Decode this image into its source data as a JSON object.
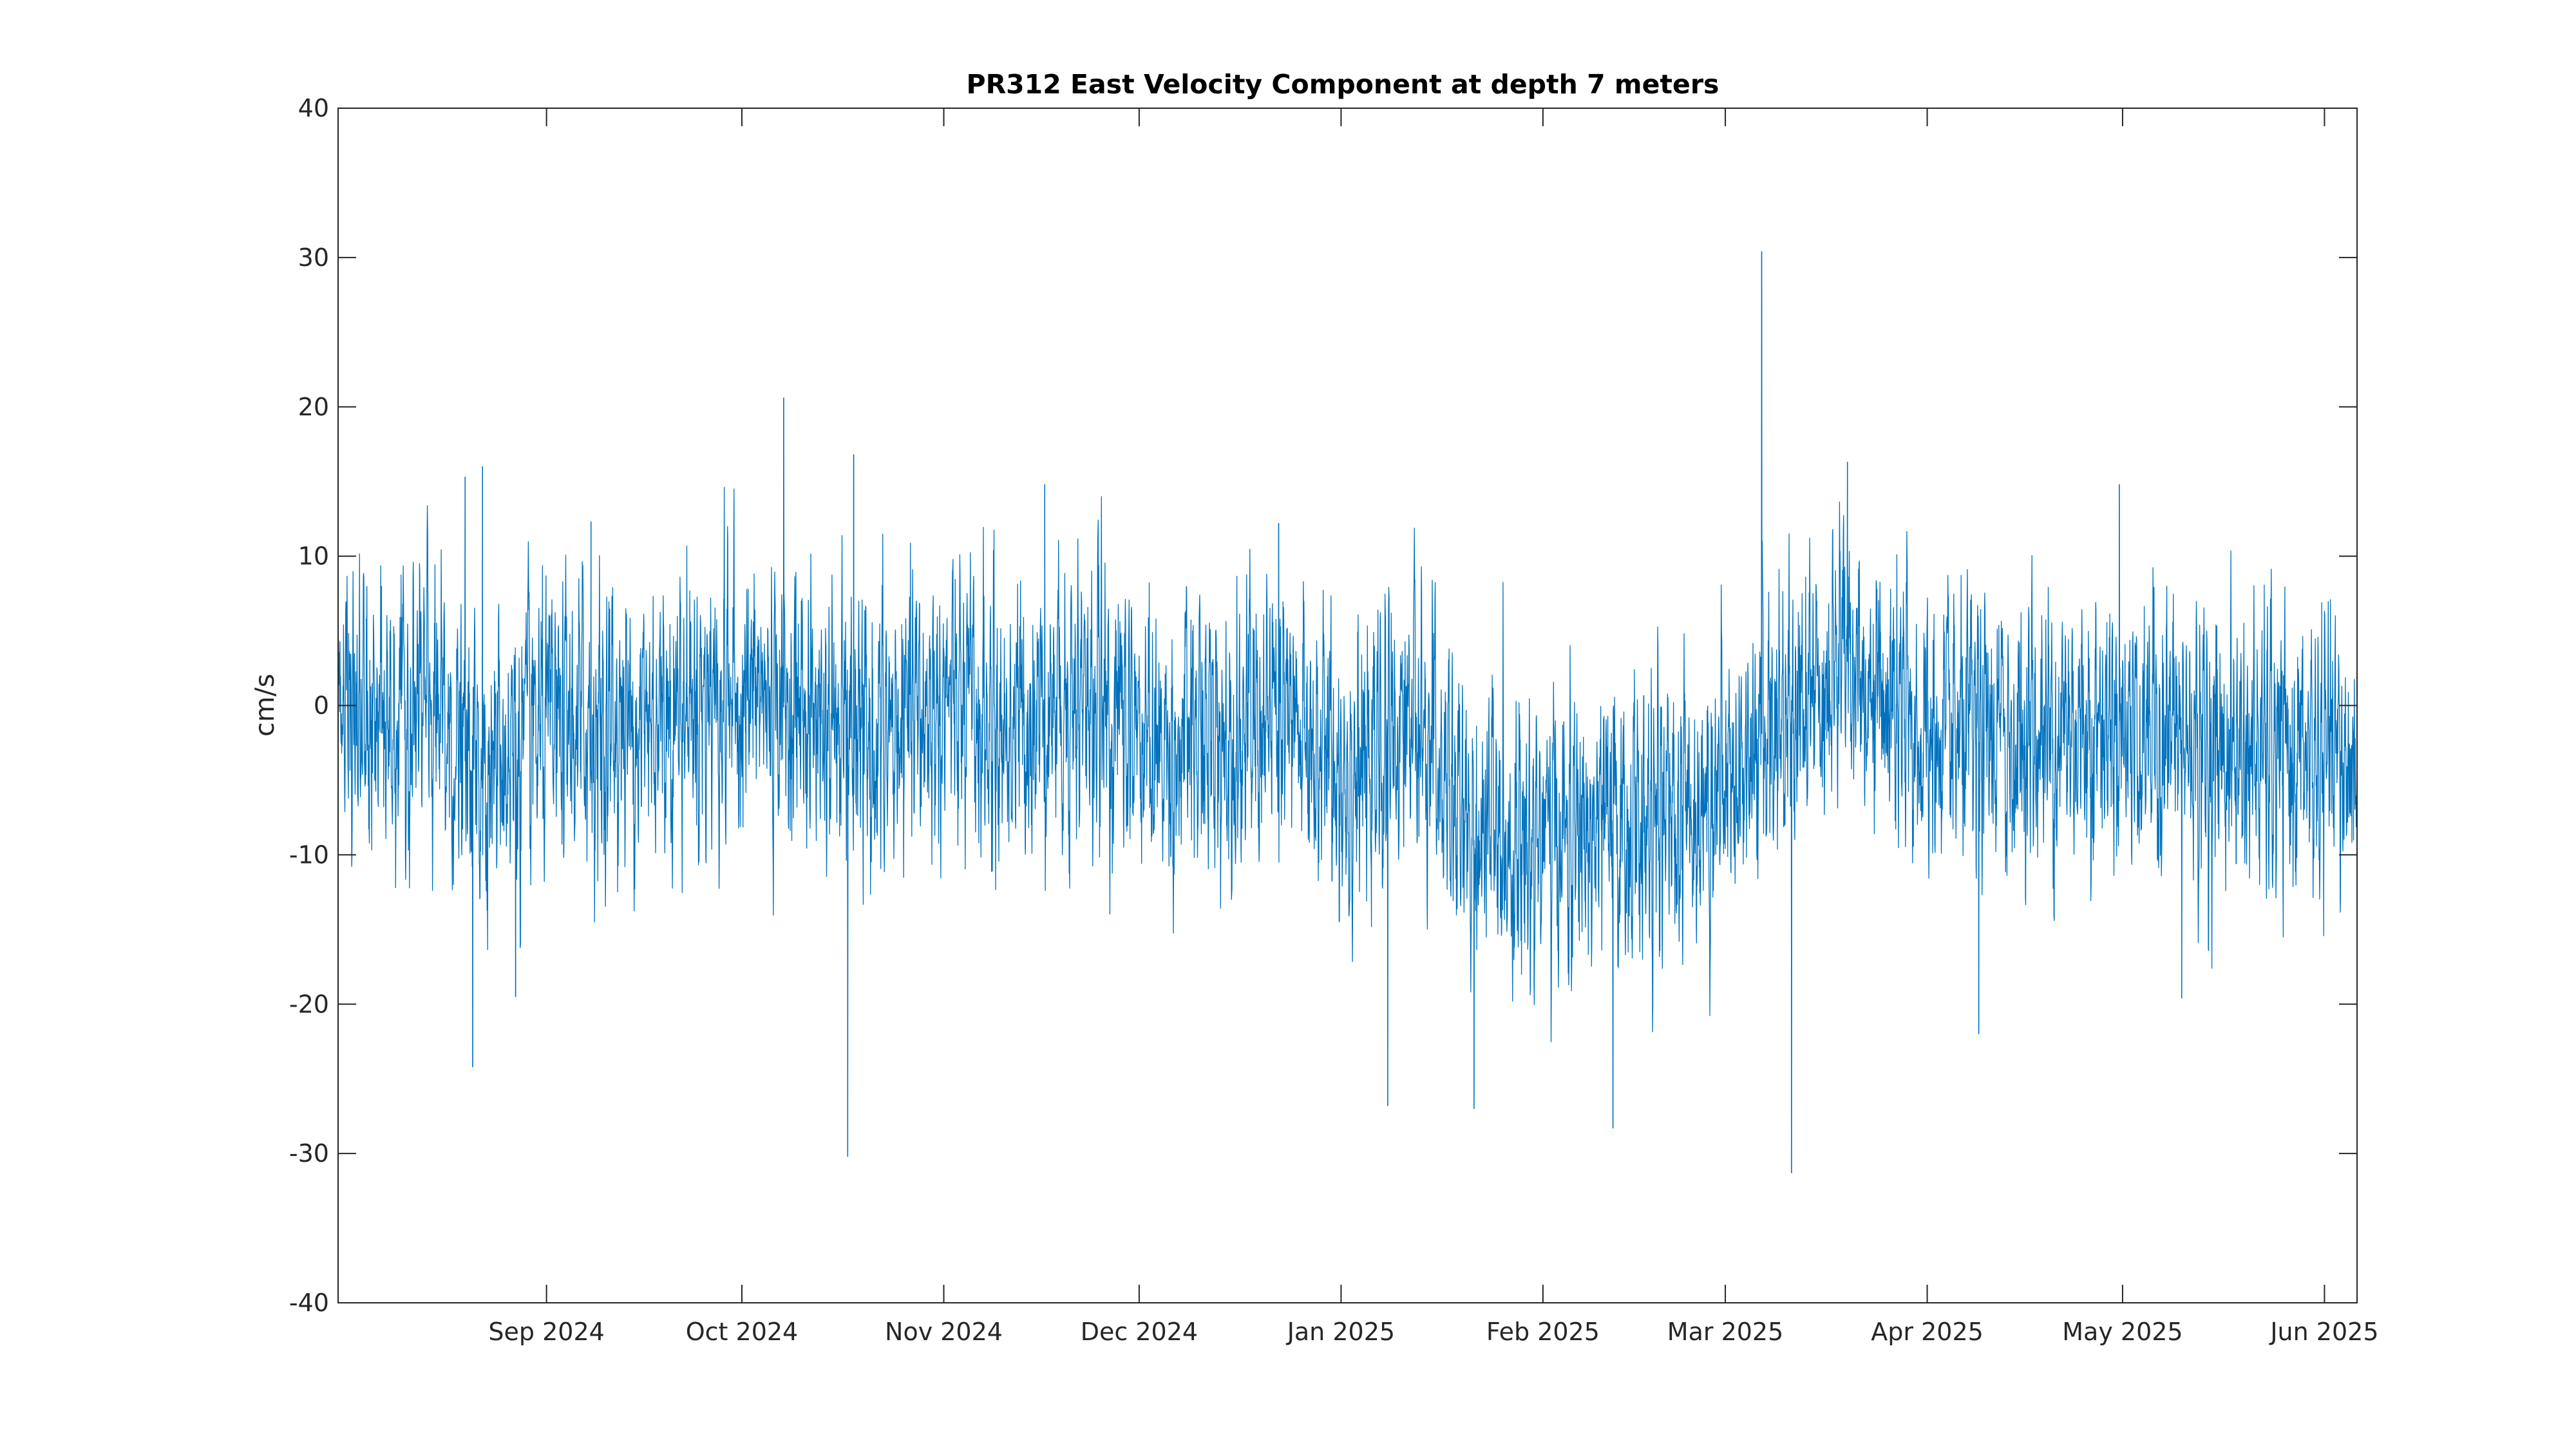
{
  "chart_data": {
    "type": "line",
    "title": "PR312 East Velocity Component at depth 7 meters",
    "xlabel": "",
    "ylabel": "cm/s",
    "xlim": [
      "2024-07-31",
      "2025-06-06"
    ],
    "ylim": [
      -40,
      40
    ],
    "yticks": [
      -40,
      -30,
      -20,
      -10,
      0,
      10,
      20,
      30,
      40
    ],
    "ytick_labels": [
      "-40",
      "-30",
      "-20",
      "-10",
      "0",
      "10",
      "20",
      "30",
      "40"
    ],
    "xticks": [
      "2024-09-01",
      "2024-10-01",
      "2024-11-01",
      "2024-12-01",
      "2025-01-01",
      "2025-02-01",
      "2025-03-01",
      "2025-04-01",
      "2025-05-01",
      "2025-06-01"
    ],
    "xtick_labels": [
      "Sep 2024",
      "Oct 2024",
      "Nov 2024",
      "Dec 2024",
      "Jan 2025",
      "Feb 2025",
      "Mar 2025",
      "Apr 2025",
      "May 2025",
      "Jun 2025"
    ],
    "grid": false,
    "series": [
      {
        "color": "#0072bd",
        "sampling": "hourly",
        "start": "2024-07-31T00:00",
        "end": "2025-06-06T00:00",
        "approx_min": -31.3,
        "approx_max": 30.4,
        "envelope": [
          {
            "x": "2024-07-31",
            "y": 0
          },
          {
            "x": "2024-08-05",
            "y": -2
          },
          {
            "x": "2024-08-13",
            "y": 0
          },
          {
            "x": "2024-08-20",
            "y": -4
          },
          {
            "x": "2024-08-31",
            "y": -2
          },
          {
            "x": "2024-09-15",
            "y": -1
          },
          {
            "x": "2024-09-28",
            "y": 1
          },
          {
            "x": "2024-10-10",
            "y": 0
          },
          {
            "x": "2024-10-20",
            "y": -3
          },
          {
            "x": "2024-11-01",
            "y": 0
          },
          {
            "x": "2024-11-10",
            "y": -2
          },
          {
            "x": "2024-11-20",
            "y": 1
          },
          {
            "x": "2024-12-05",
            "y": -3
          },
          {
            "x": "2024-12-20",
            "y": -1
          },
          {
            "x": "2025-01-05",
            "y": -5
          },
          {
            "x": "2025-01-12",
            "y": 0
          },
          {
            "x": "2025-01-20",
            "y": -9
          },
          {
            "x": "2025-02-05",
            "y": -9
          },
          {
            "x": "2025-02-20",
            "y": -8
          },
          {
            "x": "2025-03-01",
            "y": -5
          },
          {
            "x": "2025-03-10",
            "y": 0
          },
          {
            "x": "2025-03-20",
            "y": 3
          },
          {
            "x": "2025-04-01",
            "y": -3
          },
          {
            "x": "2025-04-15",
            "y": -2
          },
          {
            "x": "2025-05-01",
            "y": -1
          },
          {
            "x": "2025-05-15",
            "y": -3
          },
          {
            "x": "2025-06-06",
            "y": -4
          }
        ],
        "notable_points": [
          {
            "x": "2024-08-19T12:00",
            "y": 15.3
          },
          {
            "x": "2024-08-20T16:00",
            "y": -24.2
          },
          {
            "x": "2024-08-22T04:00",
            "y": 16.0
          },
          {
            "x": "2024-08-27T06:00",
            "y": -19.5
          },
          {
            "x": "2024-09-07T20:00",
            "y": 12.3
          },
          {
            "x": "2024-10-07T10:00",
            "y": 20.6
          },
          {
            "x": "2024-10-17T06:00",
            "y": -30.2
          },
          {
            "x": "2024-10-18T04:00",
            "y": 16.8
          },
          {
            "x": "2024-11-16T12:00",
            "y": 14.8
          },
          {
            "x": "2024-12-22T10:00",
            "y": 12.2
          },
          {
            "x": "2025-01-08T04:00",
            "y": -26.8
          },
          {
            "x": "2025-01-21T10:00",
            "y": -27.0
          },
          {
            "x": "2025-02-11T18:00",
            "y": -28.3
          },
          {
            "x": "2025-03-06T14:00",
            "y": 30.4
          },
          {
            "x": "2025-03-11T04:00",
            "y": -31.3
          },
          {
            "x": "2025-03-19T18:00",
            "y": 16.3
          },
          {
            "x": "2025-04-08T22:00",
            "y": -22.0
          },
          {
            "x": "2025-04-30T12:00",
            "y": 14.8
          },
          {
            "x": "2025-05-10T02:00",
            "y": -19.6
          }
        ]
      }
    ]
  }
}
